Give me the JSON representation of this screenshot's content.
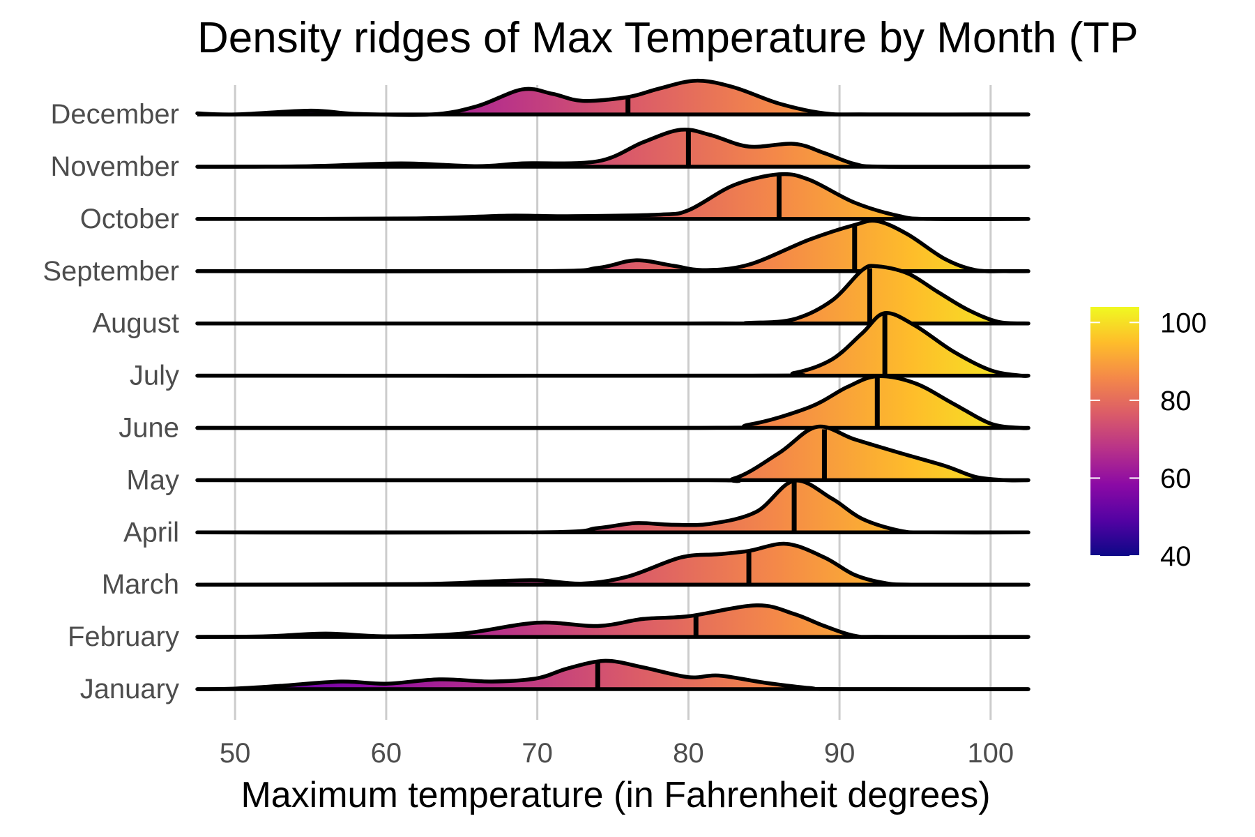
{
  "chart_data": {
    "type": "ridgeline",
    "title": "Density ridges of Max Temperature by Month (TP",
    "xlabel": "Maximum temperature (in Fahrenheit degrees)",
    "ylabel": "",
    "xlim": [
      47.5,
      102.5
    ],
    "xticks": [
      50,
      60,
      70,
      80,
      90,
      100
    ],
    "grid": true,
    "categories": [
      "January",
      "February",
      "March",
      "April",
      "May",
      "June",
      "July",
      "August",
      "September",
      "October",
      "November",
      "December"
    ],
    "series": [
      {
        "name": "January",
        "median": 74,
        "density": [
          [
            47.5,
            0.0
          ],
          [
            50,
            0.01
          ],
          [
            53,
            0.06
          ],
          [
            57,
            0.14
          ],
          [
            60,
            0.1
          ],
          [
            63.5,
            0.18
          ],
          [
            67,
            0.14
          ],
          [
            70,
            0.2
          ],
          [
            72,
            0.38
          ],
          [
            74.5,
            0.52
          ],
          [
            77,
            0.4
          ],
          [
            80,
            0.22
          ],
          [
            82,
            0.25
          ],
          [
            85,
            0.12
          ],
          [
            88,
            0.02
          ],
          [
            90,
            0.0
          ],
          [
            102.5,
            0.0
          ]
        ]
      },
      {
        "name": "February",
        "median": 80.5,
        "density": [
          [
            47.5,
            0.0
          ],
          [
            52,
            0.01
          ],
          [
            56,
            0.06
          ],
          [
            60,
            0.01
          ],
          [
            65,
            0.06
          ],
          [
            70,
            0.26
          ],
          [
            74,
            0.2
          ],
          [
            77,
            0.33
          ],
          [
            80,
            0.38
          ],
          [
            84.5,
            0.58
          ],
          [
            87,
            0.42
          ],
          [
            89,
            0.2
          ],
          [
            91,
            0.02
          ],
          [
            93,
            0.0
          ],
          [
            102.5,
            0.0
          ]
        ]
      },
      {
        "name": "March",
        "median": 84,
        "density": [
          [
            47.5,
            0.0
          ],
          [
            62,
            0.01
          ],
          [
            67,
            0.06
          ],
          [
            70,
            0.08
          ],
          [
            73,
            0.02
          ],
          [
            76,
            0.15
          ],
          [
            79.5,
            0.5
          ],
          [
            82,
            0.56
          ],
          [
            84,
            0.62
          ],
          [
            86.5,
            0.75
          ],
          [
            89,
            0.5
          ],
          [
            91,
            0.18
          ],
          [
            93,
            0.03
          ],
          [
            95,
            0.0
          ],
          [
            102.5,
            0.0
          ]
        ]
      },
      {
        "name": "April",
        "median": 87,
        "density": [
          [
            47.5,
            0.0
          ],
          [
            70,
            0.0
          ],
          [
            74,
            0.08
          ],
          [
            76.5,
            0.17
          ],
          [
            79,
            0.14
          ],
          [
            81.5,
            0.16
          ],
          [
            84.5,
            0.38
          ],
          [
            87,
            0.95
          ],
          [
            89.5,
            0.62
          ],
          [
            91.5,
            0.25
          ],
          [
            94,
            0.03
          ],
          [
            96,
            0.0
          ],
          [
            102.5,
            0.0
          ]
        ]
      },
      {
        "name": "May",
        "median": 89,
        "density": [
          [
            47.5,
            0.0
          ],
          [
            80,
            0.0
          ],
          [
            83,
            0.03
          ],
          [
            86,
            0.5
          ],
          [
            88.5,
            0.98
          ],
          [
            91,
            0.75
          ],
          [
            94,
            0.5
          ],
          [
            97,
            0.26
          ],
          [
            99,
            0.06
          ],
          [
            101,
            0.0
          ],
          [
            102.5,
            0.0
          ]
        ]
      },
      {
        "name": "June",
        "median": 92.5,
        "density": [
          [
            47.5,
            0.0
          ],
          [
            80,
            0.0
          ],
          [
            84,
            0.06
          ],
          [
            88,
            0.38
          ],
          [
            90.5,
            0.75
          ],
          [
            92.5,
            0.95
          ],
          [
            95,
            0.82
          ],
          [
            97.5,
            0.45
          ],
          [
            100,
            0.08
          ],
          [
            102,
            0.0
          ],
          [
            102.5,
            0.0
          ]
        ]
      },
      {
        "name": "July",
        "median": 93,
        "density": [
          [
            47.5,
            0.0
          ],
          [
            84,
            0.0
          ],
          [
            87,
            0.05
          ],
          [
            89.5,
            0.3
          ],
          [
            91.5,
            0.78
          ],
          [
            93,
            1.15
          ],
          [
            95,
            0.92
          ],
          [
            97.5,
            0.45
          ],
          [
            100,
            0.1
          ],
          [
            102,
            0.0
          ],
          [
            102.5,
            0.0
          ]
        ]
      },
      {
        "name": "August",
        "median": 92,
        "density": [
          [
            47.5,
            0.0
          ],
          [
            80,
            0.0
          ],
          [
            84,
            0.01
          ],
          [
            87,
            0.08
          ],
          [
            89.5,
            0.42
          ],
          [
            91.5,
            0.98
          ],
          [
            92.5,
            1.05
          ],
          [
            94.5,
            0.92
          ],
          [
            96.5,
            0.58
          ],
          [
            98.5,
            0.25
          ],
          [
            100.5,
            0.03
          ],
          [
            102.5,
            0.0
          ]
        ]
      },
      {
        "name": "September",
        "median": 91,
        "density": [
          [
            47.5,
            0.0
          ],
          [
            70,
            0.0
          ],
          [
            74,
            0.06
          ],
          [
            76.5,
            0.2
          ],
          [
            79,
            0.1
          ],
          [
            81,
            0.02
          ],
          [
            84,
            0.12
          ],
          [
            88,
            0.58
          ],
          [
            91,
            0.85
          ],
          [
            92.5,
            0.92
          ],
          [
            94.5,
            0.68
          ],
          [
            97,
            0.22
          ],
          [
            99,
            0.02
          ],
          [
            101,
            0.0
          ],
          [
            102.5,
            0.0
          ]
        ]
      },
      {
        "name": "October",
        "median": 86,
        "density": [
          [
            47.5,
            0.0
          ],
          [
            62,
            0.01
          ],
          [
            68,
            0.06
          ],
          [
            72,
            0.05
          ],
          [
            78,
            0.08
          ],
          [
            80,
            0.16
          ],
          [
            83,
            0.62
          ],
          [
            86,
            0.82
          ],
          [
            88,
            0.72
          ],
          [
            91,
            0.3
          ],
          [
            94,
            0.05
          ],
          [
            96,
            0.0
          ],
          [
            102.5,
            0.0
          ]
        ]
      },
      {
        "name": "November",
        "median": 80,
        "density": [
          [
            47.5,
            0.0
          ],
          [
            55,
            0.01
          ],
          [
            61,
            0.06
          ],
          [
            66,
            0.01
          ],
          [
            69,
            0.06
          ],
          [
            74,
            0.1
          ],
          [
            77,
            0.45
          ],
          [
            79.5,
            0.68
          ],
          [
            81.5,
            0.58
          ],
          [
            84,
            0.37
          ],
          [
            87,
            0.42
          ],
          [
            89,
            0.25
          ],
          [
            91,
            0.05
          ],
          [
            93,
            0.0
          ],
          [
            102.5,
            0.0
          ]
        ]
      },
      {
        "name": "December",
        "median": 76,
        "density": [
          [
            47.5,
            0.02
          ],
          [
            50,
            0.0
          ],
          [
            55,
            0.07
          ],
          [
            58,
            0.01
          ],
          [
            63,
            0.0
          ],
          [
            66,
            0.15
          ],
          [
            69,
            0.46
          ],
          [
            71,
            0.38
          ],
          [
            73,
            0.25
          ],
          [
            76,
            0.32
          ],
          [
            78,
            0.47
          ],
          [
            80.5,
            0.62
          ],
          [
            83,
            0.5
          ],
          [
            86,
            0.2
          ],
          [
            89,
            0.02
          ],
          [
            92,
            0.0
          ],
          [
            102.5,
            0.0
          ]
        ]
      }
    ],
    "colorbar": {
      "ticks": [
        40,
        60,
        80,
        100
      ],
      "range": [
        40,
        104
      ],
      "colors": [
        "#0d0887",
        "#5302a3",
        "#8b0aa5",
        "#b83289",
        "#db5c68",
        "#f48849",
        "#febd2a",
        "#f0f921"
      ]
    },
    "legend_position": "right"
  }
}
